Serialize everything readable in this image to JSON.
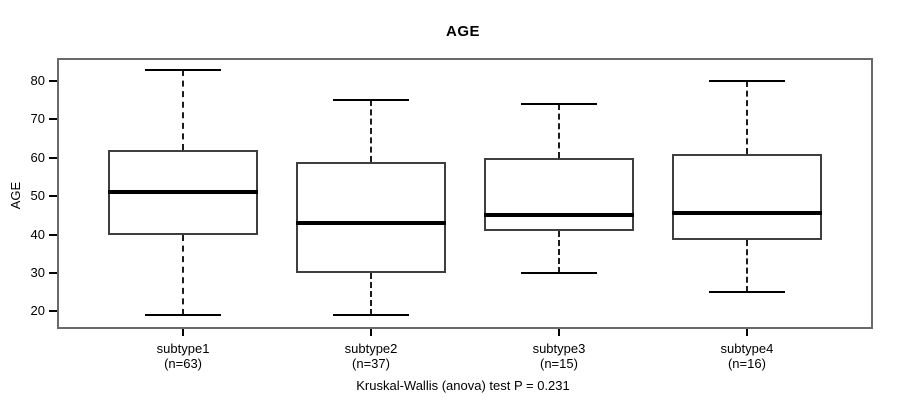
{
  "chart_data": {
    "type": "boxplot",
    "title": "AGE",
    "ylabel": "AGE",
    "xlabel": "",
    "caption": "Kruskal-Wallis (anova) test P = 0.231",
    "yticks": [
      20,
      30,
      40,
      50,
      60,
      70,
      80
    ],
    "ylim_draw": [
      15.9,
      85.5
    ],
    "xlim_draw": [
      0.34,
      4.66
    ],
    "box_width_units": 0.8,
    "cap_width_units": 0.4,
    "grid": false,
    "series": [
      {
        "label": "subtype1",
        "sublabel": "(n=63)",
        "n": 63,
        "position": 1,
        "whisker_low": 19,
        "q1": 40,
        "median": 51,
        "q3": 62,
        "whisker_high": 83
      },
      {
        "label": "subtype2",
        "sublabel": "(n=37)",
        "n": 37,
        "position": 2,
        "whisker_low": 19,
        "q1": 30,
        "median": 43,
        "q3": 59,
        "whisker_high": 75
      },
      {
        "label": "subtype3",
        "sublabel": "(n=15)",
        "n": 15,
        "position": 3,
        "whisker_low": 30,
        "q1": 41,
        "median": 45,
        "q3": 60,
        "whisker_high": 74
      },
      {
        "label": "subtype4",
        "sublabel": "(n=16)",
        "n": 16,
        "position": 4,
        "whisker_low": 25,
        "q1": 38.5,
        "median": 45.5,
        "q3": 61,
        "whisker_high": 80
      }
    ]
  },
  "colors": {
    "line": "#000000",
    "plot_border": "#696969",
    "background": "#ffffff"
  }
}
